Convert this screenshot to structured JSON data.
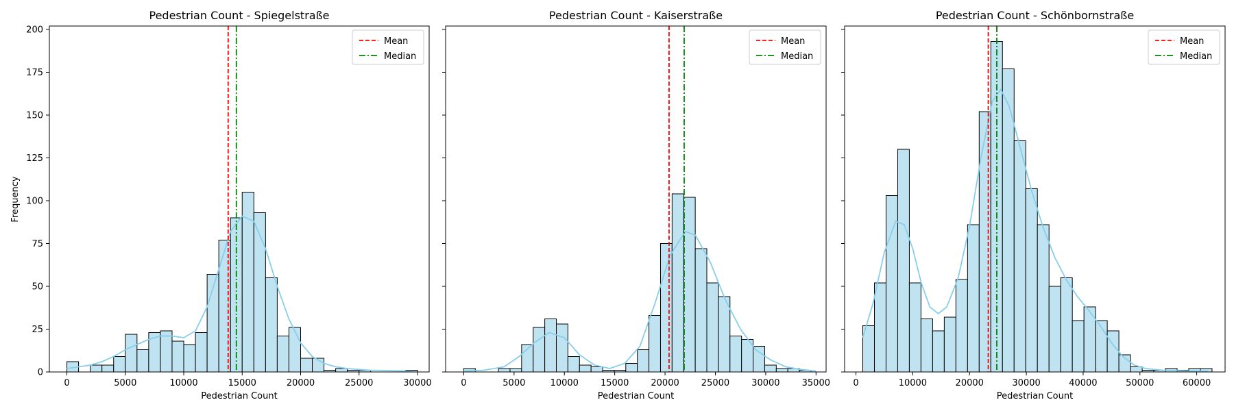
{
  "figure": {
    "ylabel": "Frequency"
  },
  "legend": {
    "mean_label": "Mean",
    "median_label": "Median"
  },
  "colors": {
    "bar_fill": "#bfe3f0",
    "bar_edge": "#000000",
    "kde": "#87ceeb",
    "mean": "#ff0000",
    "median": "#008000"
  },
  "chart_data": [
    {
      "type": "bar",
      "title": "Pedestrian Count - Spiegelstraße",
      "xlabel": "Pedestrian Count",
      "ylabel": "Frequency",
      "xlim": [
        -1500,
        31000
      ],
      "ylim": [
        0,
        202
      ],
      "xticks": [
        0,
        5000,
        10000,
        15000,
        20000,
        25000,
        30000
      ],
      "yticks": [
        0,
        25,
        50,
        75,
        100,
        125,
        150,
        175,
        200
      ],
      "bin_start": 0,
      "bin_width": 1000,
      "values": [
        6,
        0,
        4,
        4,
        9,
        22,
        13,
        23,
        24,
        18,
        16,
        23,
        57,
        77,
        90,
        105,
        93,
        55,
        21,
        26,
        8,
        8,
        1,
        2,
        1,
        1,
        0,
        0,
        0,
        1
      ],
      "mean": 13800,
      "median": 14500,
      "kde": [
        [
          0,
          2
        ],
        [
          1000,
          3
        ],
        [
          2000,
          4
        ],
        [
          3000,
          6
        ],
        [
          4000,
          9
        ],
        [
          5000,
          13
        ],
        [
          6000,
          16
        ],
        [
          7000,
          19
        ],
        [
          8000,
          21
        ],
        [
          9000,
          21
        ],
        [
          10000,
          20
        ],
        [
          11000,
          24
        ],
        [
          12000,
          38
        ],
        [
          13000,
          60
        ],
        [
          14000,
          82
        ],
        [
          15000,
          91
        ],
        [
          16000,
          88
        ],
        [
          17000,
          72
        ],
        [
          18000,
          50
        ],
        [
          19000,
          31
        ],
        [
          20000,
          17
        ],
        [
          21000,
          9
        ],
        [
          22000,
          5
        ],
        [
          23000,
          3
        ],
        [
          24000,
          2
        ],
        [
          25000,
          1.5
        ],
        [
          26000,
          1
        ],
        [
          28000,
          0.7
        ],
        [
          29500,
          0.5
        ]
      ],
      "legend": [
        "Mean",
        "Median"
      ],
      "legend_position": "top-right"
    },
    {
      "type": "bar",
      "title": "Pedestrian Count - Kaiserstraße",
      "xlabel": "Pedestrian Count",
      "xlim": [
        -1800,
        36000
      ],
      "ylim": [
        0,
        202
      ],
      "xticks": [
        0,
        5000,
        10000,
        15000,
        20000,
        25000,
        30000,
        35000
      ],
      "yticks": [
        0,
        25,
        50,
        75,
        100,
        125,
        150,
        175,
        200
      ],
      "bin_start": 0,
      "bin_width": 1150,
      "values": [
        2,
        0,
        0,
        2,
        2,
        16,
        26,
        31,
        28,
        9,
        4,
        3,
        1,
        1,
        5,
        13,
        33,
        75,
        104,
        102,
        72,
        52,
        44,
        21,
        19,
        15,
        4,
        2,
        2,
        1
      ],
      "mean": 20400,
      "median": 21900,
      "kde": [
        [
          0,
          0.5
        ],
        [
          2000,
          1
        ],
        [
          4000,
          3
        ],
        [
          5500,
          9
        ],
        [
          7000,
          17
        ],
        [
          8500,
          23
        ],
        [
          10000,
          20
        ],
        [
          11500,
          10
        ],
        [
          13000,
          4
        ],
        [
          14500,
          2
        ],
        [
          16000,
          5
        ],
        [
          17500,
          15
        ],
        [
          19000,
          40
        ],
        [
          20500,
          68
        ],
        [
          22000,
          82
        ],
        [
          23000,
          80
        ],
        [
          24500,
          64
        ],
        [
          26000,
          42
        ],
        [
          27500,
          25
        ],
        [
          29000,
          13
        ],
        [
          30500,
          7
        ],
        [
          32000,
          3
        ],
        [
          33500,
          1.5
        ],
        [
          35000,
          0.5
        ]
      ],
      "legend": [
        "Mean",
        "Median"
      ],
      "legend_position": "top-right"
    },
    {
      "type": "bar",
      "title": "Pedestrian Count - Schönbornstraße",
      "xlabel": "Pedestrian Count",
      "xlim": [
        -2000,
        65000
      ],
      "ylim": [
        0,
        202
      ],
      "xticks": [
        0,
        10000,
        20000,
        30000,
        40000,
        50000,
        60000
      ],
      "yticks": [
        0,
        25,
        50,
        75,
        100,
        125,
        150,
        175,
        200
      ],
      "bin_start": 1200,
      "bin_width": 2050,
      "values": [
        27,
        52,
        103,
        130,
        52,
        31,
        24,
        32,
        54,
        86,
        152,
        193,
        177,
        135,
        107,
        86,
        50,
        55,
        30,
        38,
        30,
        24,
        10,
        3,
        1,
        1,
        2,
        1,
        2,
        2
      ],
      "mean": 23300,
      "median": 24800,
      "kde": [
        [
          1200,
          20
        ],
        [
          3000,
          40
        ],
        [
          5000,
          70
        ],
        [
          7000,
          88
        ],
        [
          8500,
          86
        ],
        [
          10000,
          72
        ],
        [
          11500,
          52
        ],
        [
          13000,
          38
        ],
        [
          14500,
          34
        ],
        [
          16000,
          38
        ],
        [
          18000,
          55
        ],
        [
          20000,
          85
        ],
        [
          22000,
          125
        ],
        [
          24000,
          158
        ],
        [
          25500,
          165
        ],
        [
          27000,
          155
        ],
        [
          29000,
          130
        ],
        [
          31000,
          105
        ],
        [
          33000,
          84
        ],
        [
          35000,
          67
        ],
        [
          37000,
          54
        ],
        [
          39000,
          44
        ],
        [
          41000,
          36
        ],
        [
          43000,
          27
        ],
        [
          45000,
          17
        ],
        [
          47000,
          9
        ],
        [
          49000,
          4
        ],
        [
          51000,
          2
        ],
        [
          54000,
          1
        ],
        [
          57000,
          0.7
        ],
        [
          60000,
          0.5
        ],
        [
          62000,
          0.5
        ]
      ],
      "legend": [
        "Mean",
        "Median"
      ],
      "legend_position": "top-right"
    }
  ]
}
